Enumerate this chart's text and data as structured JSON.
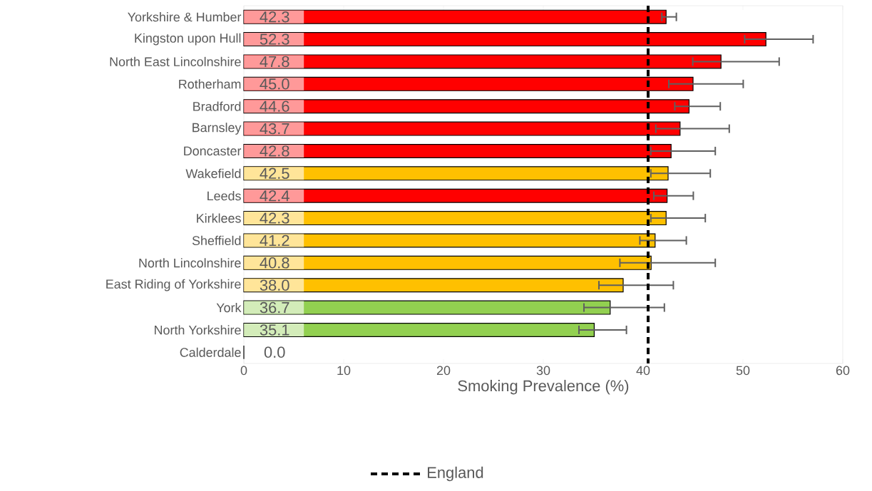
{
  "chart_data": {
    "type": "bar",
    "orientation": "horizontal",
    "xlabel": "Smoking Prevalence (%)",
    "categories": [
      "Yorkshire & Humber",
      "Kingston upon Hull",
      "North East Lincolnshire",
      "Rotherham",
      "Bradford",
      "Barnsley",
      "Doncaster",
      "Wakefield",
      "Leeds",
      "Kirklees",
      "Sheffield",
      "North Lincolnshire",
      "East Riding of Yorkshire",
      "York",
      "North Yorkshire",
      "Calderdale"
    ],
    "values": [
      42.3,
      52.3,
      47.8,
      45.0,
      44.6,
      43.7,
      42.8,
      42.5,
      42.4,
      42.3,
      41.2,
      40.8,
      38.0,
      36.7,
      35.1,
      0.0
    ],
    "colors": [
      "#ff0000",
      "#ff0000",
      "#ff0000",
      "#ff0000",
      "#ff0000",
      "#ff0000",
      "#ff0000",
      "#ffc000",
      "#ff0000",
      "#ffc000",
      "#ffc000",
      "#ffc000",
      "#ffc000",
      "#92d050",
      "#92d050",
      "#ffffff"
    ],
    "errors": [
      [
        41.8,
        43.4
      ],
      [
        50.1,
        57.1
      ],
      [
        44.9,
        53.7
      ],
      [
        42.5,
        50.1
      ],
      [
        43.1,
        47.8
      ],
      [
        41.2,
        48.7
      ],
      [
        40.7,
        47.3
      ],
      [
        40.7,
        46.8
      ],
      [
        41.0,
        45.1
      ],
      [
        40.7,
        46.3
      ],
      [
        39.6,
        44.4
      ],
      [
        37.6,
        47.3
      ],
      [
        35.5,
        43.1
      ],
      [
        34.0,
        42.2
      ],
      [
        33.5,
        38.4
      ],
      null
    ],
    "xlim": [
      0,
      60
    ],
    "xticks": [
      0,
      10,
      20,
      30,
      40,
      50,
      60
    ],
    "value_labels": [
      "42.3",
      "52.3",
      "47.8",
      "45.0",
      "44.6",
      "43.7",
      "42.8",
      "42.5",
      "42.4",
      "42.3",
      "41.2",
      "40.8",
      "38.0",
      "36.7",
      "35.1",
      "0.0"
    ],
    "ref_lines": [
      {
        "axis": "x",
        "value": 40.5,
        "label": "England",
        "line_style": "dashed",
        "color": "#000000"
      }
    ],
    "legend": "bottom"
  }
}
